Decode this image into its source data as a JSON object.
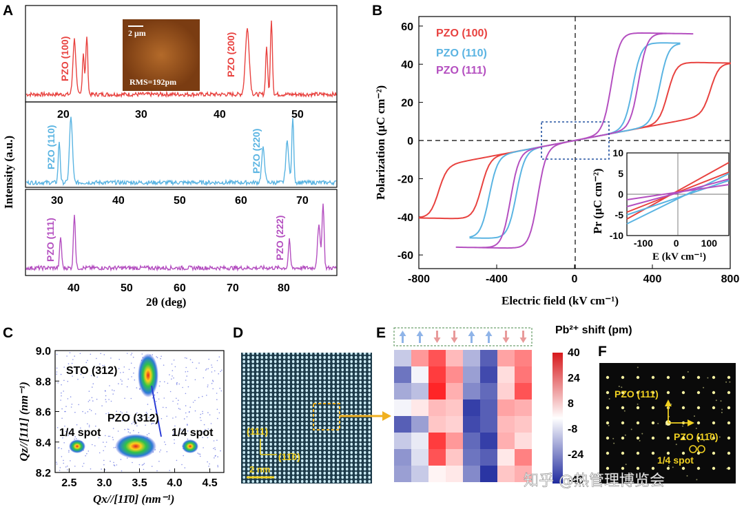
{
  "panels": {
    "A": "A",
    "B": "B",
    "C": "C",
    "D": "D",
    "E": "E",
    "F": "F"
  },
  "panel_a": {
    "ylabel": "Intensity (a.u.)",
    "xlabel": "2θ (deg)",
    "inset": {
      "scale": "2 μm",
      "rms": "RMS=192pm"
    },
    "sub": [
      {
        "name": "PZO (100)",
        "name2": "PZO (200)",
        "color": "#e8423f",
        "ticks": [
          "20",
          "30",
          "40",
          "50"
        ]
      },
      {
        "name": "PZO (110)",
        "name2": "PZO (220)",
        "color": "#5ab4e2",
        "ticks": [
          "30",
          "40",
          "50",
          "60",
          "70"
        ]
      },
      {
        "name": "PZO (111)",
        "name2": "PZO (222)",
        "color": "#b44fc0",
        "ticks": [
          "40",
          "50",
          "60",
          "70",
          "80"
        ]
      }
    ]
  },
  "panel_b": {
    "xlabel": "Electric field (kV cm⁻¹)",
    "ylabel": "Polarization (μC cm⁻²)",
    "inset_xlabel": "E (kV cm⁻¹)",
    "inset_ylabel": "Pr (μC cm⁻²)"
  },
  "panel_c": {
    "sto": "STO (312)",
    "pzo": "PZO (312)",
    "spot_left": "1/4 spot",
    "spot_right": "1/4 spot",
    "ylabel": "Qz//[111] (nm⁻¹)",
    "xlabel": "Qx//[11̄0] (nm⁻¹)"
  },
  "panel_d": {
    "dir1": "(111)",
    "dir2": "(11̄0)",
    "scale": "2 nm"
  },
  "panel_e": {
    "title": "Pb²⁺ shift (pm)",
    "colorbar_ticks": [
      "40",
      "24",
      "8",
      "-8",
      "-24",
      "-40"
    ],
    "heatmap": [
      [
        -10,
        18,
        30,
        12,
        -14,
        -30,
        16,
        22
      ],
      [
        -26,
        -2,
        34,
        20,
        -18,
        -34,
        6,
        24
      ],
      [
        -16,
        -12,
        38,
        14,
        -22,
        -28,
        8,
        30
      ],
      [
        -2,
        4,
        12,
        10,
        -36,
        -30,
        16,
        14
      ],
      [
        -30,
        -18,
        10,
        8,
        -34,
        -30,
        12,
        10
      ],
      [
        -10,
        -4,
        34,
        18,
        -28,
        -36,
        14,
        6
      ],
      [
        -20,
        -6,
        30,
        10,
        -26,
        -30,
        4,
        22
      ],
      [
        -18,
        -10,
        2,
        4,
        -22,
        -38,
        10,
        14
      ]
    ],
    "arrows": [
      "up",
      "up",
      "down",
      "down",
      "up",
      "up",
      "down",
      "down"
    ]
  },
  "panel_f": {
    "dir1": "PZO (111)",
    "dir2": "PZO (11̄0)",
    "spot": "1/4 spot"
  },
  "watermark": "知乎 @热管理博览会",
  "chart_data": [
    {
      "type": "line",
      "title": "",
      "xlabel": "2θ (deg)",
      "ylabel": "Intensity (a.u.)",
      "series": [
        {
          "name": "PZO (100)",
          "peaks_2theta": [
            21.0,
            22.0,
            43.0,
            44.7,
            45.5
          ]
        },
        {
          "name": "PZO (110)",
          "peaks_2theta": [
            30.5,
            31.5,
            63.0,
            66.5,
            67.5
          ]
        },
        {
          "name": "PZO (111)",
          "peaks_2theta": [
            37.5,
            40.0,
            80.0,
            85.0,
            86.0
          ]
        }
      ]
    },
    {
      "type": "line",
      "title": "",
      "xlabel": "Electric field (kV cm⁻¹)",
      "ylabel": "Polarization (μC cm⁻²)",
      "xlim": [
        -800,
        800
      ],
      "ylim": [
        -65,
        65
      ],
      "x_ticks": [
        "-800",
        "-400",
        "0",
        "400",
        "800"
      ],
      "y_ticks": [
        "60",
        "40",
        "20",
        "0",
        "-20",
        "-40",
        "-60"
      ],
      "legend_position": "top-left",
      "series": [
        {
          "name": "PZO (100)",
          "color": "#e8423f",
          "max_field": 800,
          "max_pol": 42
        },
        {
          "name": "PZO (110)",
          "color": "#5ab4e2",
          "max_field": 550,
          "max_pol": 52
        },
        {
          "name": "PZO (111)",
          "color": "#b44fc0",
          "max_field": 620,
          "max_pol": 57
        }
      ],
      "inset": {
        "xlim": [
          -150,
          160
        ],
        "ylim": [
          -10,
          10
        ],
        "x_ticks": [
          "-100",
          "0",
          "100"
        ],
        "y_ticks": [
          "10",
          "5",
          "0",
          "-5",
          "-10"
        ]
      }
    },
    {
      "type": "scatter",
      "title": "",
      "xlabel": "Qx//[11̄0] (nm⁻¹)",
      "ylabel": "Qz//[111] (nm⁻¹)",
      "xlim": [
        2.3,
        4.7
      ],
      "ylim": [
        8.2,
        9.0
      ],
      "x_ticks": [
        "2.5",
        "3.0",
        "3.5",
        "4.0",
        "4.5"
      ],
      "y_ticks": [
        "9.0",
        "8.8",
        "8.6",
        "8.4",
        "8.2"
      ],
      "spots": [
        {
          "label": "STO (312)",
          "qx": 3.52,
          "qz": 8.86
        },
        {
          "label": "PZO (312)",
          "qx": 3.35,
          "qz": 8.36
        },
        {
          "label": "1/4 spot",
          "qx": 2.5,
          "qz": 8.36
        },
        {
          "label": "1/4 spot",
          "qx": 4.23,
          "qz": 8.36
        }
      ]
    },
    {
      "type": "heatmap",
      "title": "Pb²⁺ shift (pm)",
      "range": [
        -40,
        40
      ]
    }
  ]
}
